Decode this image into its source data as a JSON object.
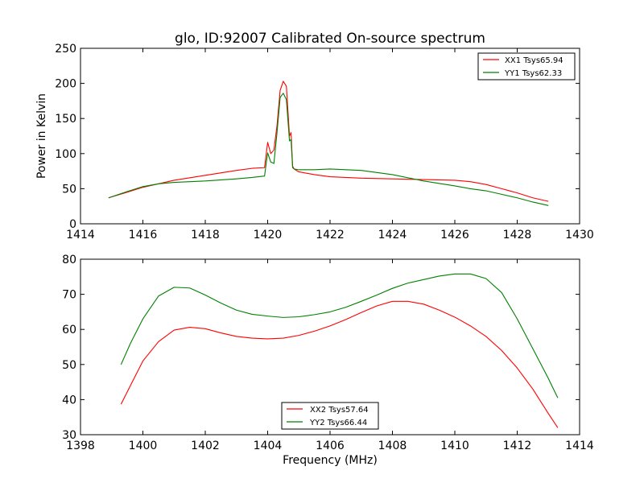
{
  "chart_data": [
    {
      "type": "line",
      "title": "glo, ID:92007 Calibrated On-source spectrum",
      "xlabel": "",
      "ylabel": "Power in Kelvin",
      "xlim": [
        1414,
        1430
      ],
      "ylim": [
        0,
        250
      ],
      "xticks": [
        1414,
        1416,
        1418,
        1420,
        1422,
        1424,
        1426,
        1428,
        1430
      ],
      "yticks": [
        0,
        50,
        100,
        150,
        200,
        250
      ],
      "legend_position": "top-right",
      "series": [
        {
          "name": "XX1 Tsys65.94",
          "color": "#ff0000",
          "x": [
            1414.9,
            1415.5,
            1416,
            1416.5,
            1417,
            1418,
            1419,
            1419.5,
            1419.9,
            1419.95,
            1420.0,
            1420.1,
            1420.2,
            1420.3,
            1420.4,
            1420.5,
            1420.6,
            1420.7,
            1420.75,
            1420.8,
            1420.85,
            1421,
            1421.5,
            1422,
            1423,
            1424,
            1425,
            1426,
            1426.5,
            1427,
            1427.5,
            1428,
            1428.5,
            1429
          ],
          "y": [
            37,
            45,
            52,
            57,
            62,
            69,
            76,
            79,
            80,
            98,
            116,
            100,
            105,
            140,
            190,
            203,
            196,
            125,
            130,
            82,
            78,
            74,
            70,
            67,
            65,
            64,
            63,
            62,
            60,
            56,
            50,
            44,
            37,
            32
          ]
        },
        {
          "name": "YY1 Tsys62.33",
          "color": "#008000",
          "x": [
            1414.9,
            1415.5,
            1416,
            1416.5,
            1417,
            1418,
            1419,
            1419.5,
            1419.9,
            1419.95,
            1420.0,
            1420.1,
            1420.2,
            1420.3,
            1420.4,
            1420.5,
            1420.6,
            1420.7,
            1420.75,
            1420.8,
            1420.85,
            1421,
            1421.5,
            1422,
            1423,
            1424,
            1425,
            1426,
            1426.5,
            1427,
            1427.5,
            1428,
            1428.5,
            1429
          ],
          "y": [
            37,
            46,
            53,
            57,
            59,
            61,
            64,
            66,
            68,
            85,
            101,
            88,
            86,
            130,
            180,
            186,
            177,
            118,
            120,
            80,
            78,
            77,
            77,
            78,
            76,
            70,
            61,
            54,
            50,
            47,
            42,
            37,
            31,
            26
          ]
        }
      ]
    },
    {
      "type": "line",
      "title": "",
      "xlabel": "Frequency (MHz)",
      "ylabel": "",
      "xlim": [
        1398,
        1414
      ],
      "ylim": [
        30,
        80
      ],
      "xticks": [
        1398,
        1400,
        1402,
        1404,
        1406,
        1408,
        1410,
        1412,
        1414
      ],
      "yticks": [
        30,
        40,
        50,
        60,
        70,
        80
      ],
      "legend_position": "lower-center",
      "series": [
        {
          "name": "XX2 Tsys57.64",
          "color": "#ff0000",
          "x": [
            1399.3,
            1399.6,
            1400,
            1400.5,
            1401,
            1401.5,
            1402,
            1402.5,
            1403,
            1403.5,
            1404,
            1404.5,
            1405,
            1405.5,
            1406,
            1406.5,
            1407,
            1407.5,
            1408,
            1408.5,
            1409,
            1409.5,
            1410,
            1410.5,
            1411,
            1411.5,
            1412,
            1412.5,
            1413,
            1413.3
          ],
          "y": [
            38.7,
            44,
            51,
            56.5,
            59.8,
            60.6,
            60.2,
            59,
            58,
            57.5,
            57.3,
            57.5,
            58.3,
            59.5,
            61,
            62.8,
            64.8,
            66.7,
            68,
            68,
            67.2,
            65.5,
            63.5,
            61,
            58,
            54,
            49,
            43,
            36,
            32
          ]
        },
        {
          "name": "YY2 Tsys66.44",
          "color": "#008000",
          "x": [
            1399.3,
            1399.6,
            1400,
            1400.5,
            1401,
            1401.5,
            1402,
            1402.5,
            1403,
            1403.5,
            1404,
            1404.5,
            1405,
            1405.5,
            1406,
            1406.5,
            1407,
            1407.5,
            1408,
            1408.5,
            1409,
            1409.5,
            1410,
            1410.5,
            1411,
            1411.5,
            1412,
            1412.5,
            1413,
            1413.3
          ],
          "y": [
            50,
            56,
            63,
            69.5,
            72,
            71.8,
            69.8,
            67.5,
            65.5,
            64.3,
            63.8,
            63.4,
            63.6,
            64.2,
            65,
            66.3,
            68,
            69.8,
            71.7,
            73.2,
            74.2,
            75.2,
            75.8,
            75.8,
            74.5,
            70.5,
            63,
            54.5,
            46,
            40.5
          ]
        }
      ]
    }
  ]
}
